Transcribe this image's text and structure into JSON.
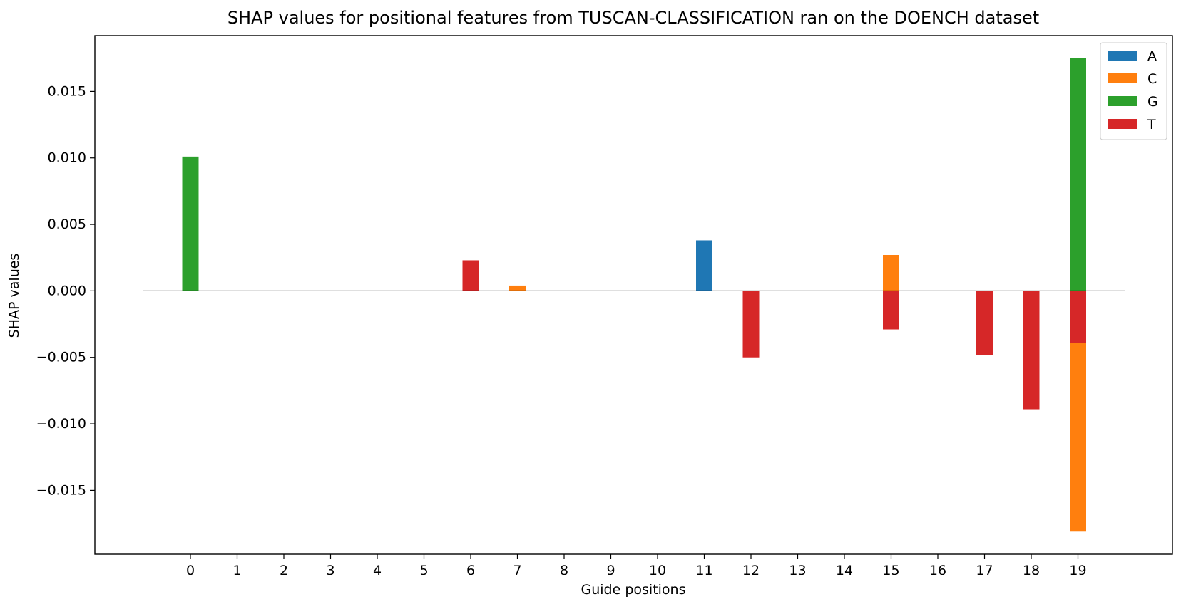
{
  "chart_data": {
    "type": "bar",
    "title": "SHAP values for positional features from TUSCAN-CLASSIFICATION ran on the DOENCH dataset",
    "xlabel": "Guide positions",
    "ylabel": "SHAP values",
    "categories": [
      "0",
      "1",
      "2",
      "3",
      "4",
      "5",
      "6",
      "7",
      "8",
      "9",
      "10",
      "11",
      "12",
      "13",
      "14",
      "15",
      "16",
      "17",
      "18",
      "19"
    ],
    "yticks": [
      "0.015",
      "0.010",
      "0.005",
      "0.000",
      "−0.005",
      "−0.010",
      "−0.015"
    ],
    "ytick_values": [
      0.015,
      0.01,
      0.005,
      0.0,
      -0.005,
      -0.01,
      -0.015
    ],
    "ylim": [
      -0.0198,
      0.0192
    ],
    "grid": false,
    "legend_position": "top-right",
    "colors": {
      "A": "#1f77b4",
      "C": "#ff7f0e",
      "G": "#2ca02c",
      "T": "#d62728"
    },
    "series": [
      {
        "name": "A",
        "values": [
          0,
          0,
          0,
          0,
          0,
          0,
          0,
          0,
          0,
          0,
          0,
          0.0038,
          0,
          0,
          0,
          0,
          0,
          0,
          0,
          0
        ]
      },
      {
        "name": "C",
        "values": [
          0,
          0,
          0,
          0,
          0,
          0,
          0,
          0.0004,
          0,
          0,
          0,
          0,
          0,
          0,
          0,
          0.0027,
          0,
          0,
          0,
          -0.0142
        ]
      },
      {
        "name": "G",
        "values": [
          0.0101,
          0,
          0,
          0,
          0,
          0,
          0,
          0,
          0,
          0,
          0,
          0,
          0,
          0,
          0,
          0,
          0,
          0,
          0,
          0.0175
        ]
      },
      {
        "name": "T",
        "values": [
          0,
          0,
          0,
          0,
          0,
          0,
          0.0023,
          0,
          0,
          0,
          0,
          0,
          -0.005,
          0,
          0,
          -0.0029,
          0,
          -0.0048,
          -0.0089,
          -0.0039
        ]
      }
    ],
    "stacking_note": "At position 19 the C bar is drawn below the T bar."
  }
}
